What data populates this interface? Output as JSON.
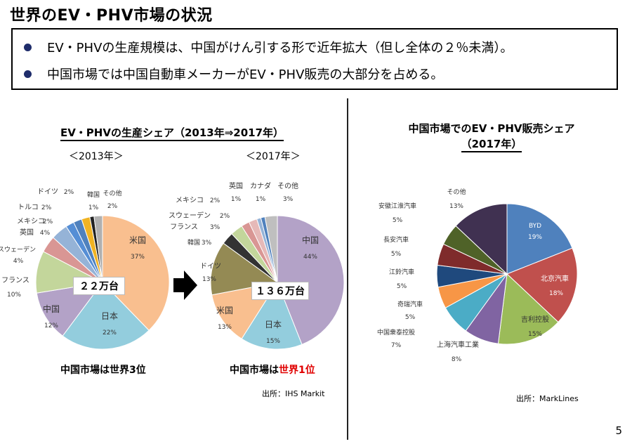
{
  "title": "世界のEV・PHV市場の状況",
  "bullets": [
    "EV・PHVの生産規模は、中国がけん引する形で近年拡大（但し全体の２％未満）。",
    "中国市場では中国自動車メーカーがEV・PHV販売の大部分を占める。"
  ],
  "left_section": {
    "title": "EV・PHVの生産シェア（2013年⇒2017年）",
    "pie2013_label": "＜2013年＞",
    "pie2013_total": "２２万台",
    "pie2013_caption": "中国市場は世界3位",
    "pie2017_label": "＜2017年＞",
    "pie2017_total": "１３６万台",
    "pie2017_caption_prefix": "中国市場は",
    "pie2017_caption_highlight": "世界1位",
    "source": "出所：IHS Markit"
  },
  "right_section": {
    "title_line1": "中国市場でのEV・PHV販売シェア",
    "title_line2": "（2017年）",
    "source": "出所：MarkLines"
  },
  "page_number": "5",
  "chart_data": [
    {
      "type": "pie",
      "title": "＜2013年＞",
      "categories": [
        "米国",
        "日本",
        "中国",
        "フランス",
        "スウェーデン",
        "英国",
        "メキシコ",
        "トルコ",
        "ドイツ",
        "韓国",
        "その他"
      ],
      "values": [
        37,
        22,
        12,
        10,
        4,
        4,
        2,
        2,
        2,
        1,
        2
      ],
      "labels": [
        "37%",
        "22%",
        "12%",
        "10%",
        "4%",
        "4%",
        "2%",
        "2%",
        "2%",
        "1%",
        "2%"
      ],
      "colors": [
        "#f9bf8f",
        "#93cddd",
        "#b3a2c7",
        "#c3d69b",
        "#d99694",
        "#95b3d7",
        "#558ed5",
        "#4f81bd",
        "#f0b323",
        "#222222",
        "#b0b0b0"
      ]
    },
    {
      "type": "pie",
      "title": "＜2017年＞",
      "categories": [
        "中国",
        "日本",
        "米国",
        "ドイツ",
        "韓国",
        "フランス",
        "スウェーデン",
        "メキシコ",
        "英国",
        "カナダ",
        "その他"
      ],
      "values": [
        44,
        15,
        13,
        13,
        3,
        3,
        2,
        2,
        1,
        1,
        3
      ],
      "labels": [
        "44%",
        "15%",
        "13%",
        "13%",
        "3%",
        "3%",
        "2%",
        "2%",
        "1%",
        "1%",
        "3%"
      ],
      "colors": [
        "#b3a2c7",
        "#93cddd",
        "#f9bf8f",
        "#948a54",
        "#333333",
        "#c3d69b",
        "#d99694",
        "#e6b9b8",
        "#95b3d7",
        "#4f81bd",
        "#bfbfbf"
      ]
    },
    {
      "type": "pie",
      "title": "中国市場でのEV・PHV販売シェア（2017年）",
      "categories": [
        "BYD",
        "北京汽車",
        "吉利控股",
        "上海汽車工業",
        "中国衆泰控股",
        "奇瑞汽車",
        "江鈴汽車",
        "長安汽車",
        "安徽江淮汽車",
        "その他"
      ],
      "values": [
        19,
        18,
        15,
        8,
        7,
        5,
        5,
        5,
        5,
        13
      ],
      "labels": [
        "19%",
        "18%",
        "15%",
        "8%",
        "7%",
        "5%",
        "5%",
        "5%",
        "5%",
        "13%"
      ],
      "colors": [
        "#4f81bd",
        "#c0504d",
        "#9bbb59",
        "#8064a2",
        "#4bacc6",
        "#f79646",
        "#1f497d",
        "#7f2b2b",
        "#4f6228",
        "#403151"
      ]
    }
  ]
}
